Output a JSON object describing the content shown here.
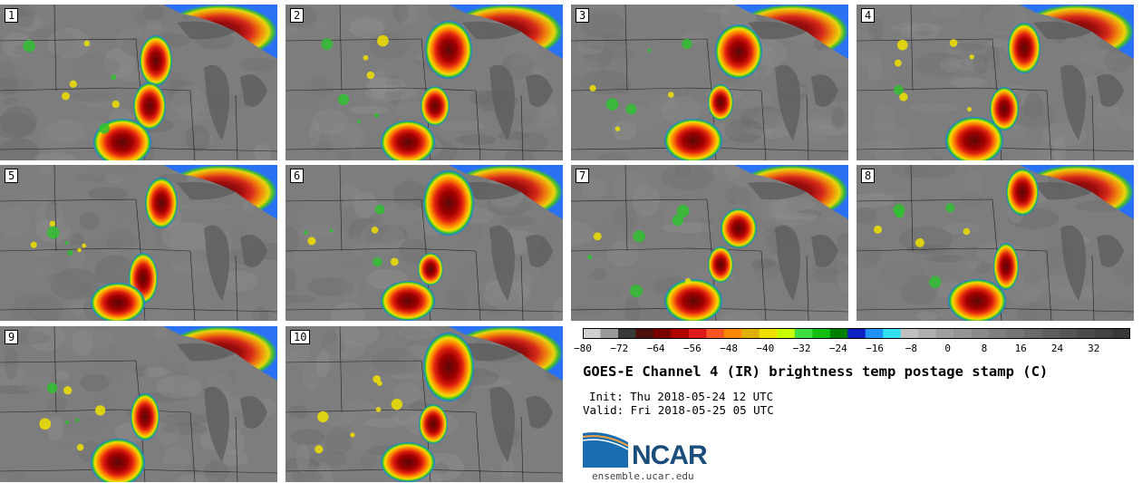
{
  "panels": [
    {
      "label": "1"
    },
    {
      "label": "2"
    },
    {
      "label": "3"
    },
    {
      "label": "4"
    },
    {
      "label": "5"
    },
    {
      "label": "6"
    },
    {
      "label": "7"
    },
    {
      "label": "8"
    },
    {
      "label": "9"
    },
    {
      "label": "10"
    }
  ],
  "colorbar": {
    "ticks": [
      "−80",
      "−72",
      "−64",
      "−56",
      "−48",
      "−40",
      "−32",
      "−24",
      "−16",
      "−8",
      "0",
      "8",
      "16",
      "24",
      "32"
    ],
    "tick_values": [
      -80,
      -72,
      -64,
      -56,
      -48,
      -40,
      -32,
      -24,
      -16,
      -8,
      0,
      8,
      16,
      24,
      32
    ],
    "min": -80,
    "max": 40,
    "colors": [
      "#d0d0d0",
      "#9a9a9a",
      "#3a3a3a",
      "#4a1010",
      "#7a0000",
      "#b00000",
      "#dd1a1a",
      "#ff5522",
      "#ff8800",
      "#e0b000",
      "#f0e000",
      "#c8ff00",
      "#40e040",
      "#10c010",
      "#008000",
      "#1020c0",
      "#2090ff",
      "#30e0f0",
      "#c0c0c0",
      "#b0b0b0",
      "#a0a0a0",
      "#959595",
      "#8a8a8a",
      "#7f7f7f",
      "#747474",
      "#6a6a6a",
      "#606060",
      "#565656",
      "#4c4c4c",
      "#424242",
      "#383838"
    ]
  },
  "title": "GOES-E Channel 4 (IR) brightness temp postage stamp (C)",
  "init": "Init: Thu 2018-05-24 12 UTC",
  "valid": "Valid: Fri 2018-05-25 05 UTC",
  "logo_text": "NCAR",
  "website": "ensemble.ucar.edu"
}
